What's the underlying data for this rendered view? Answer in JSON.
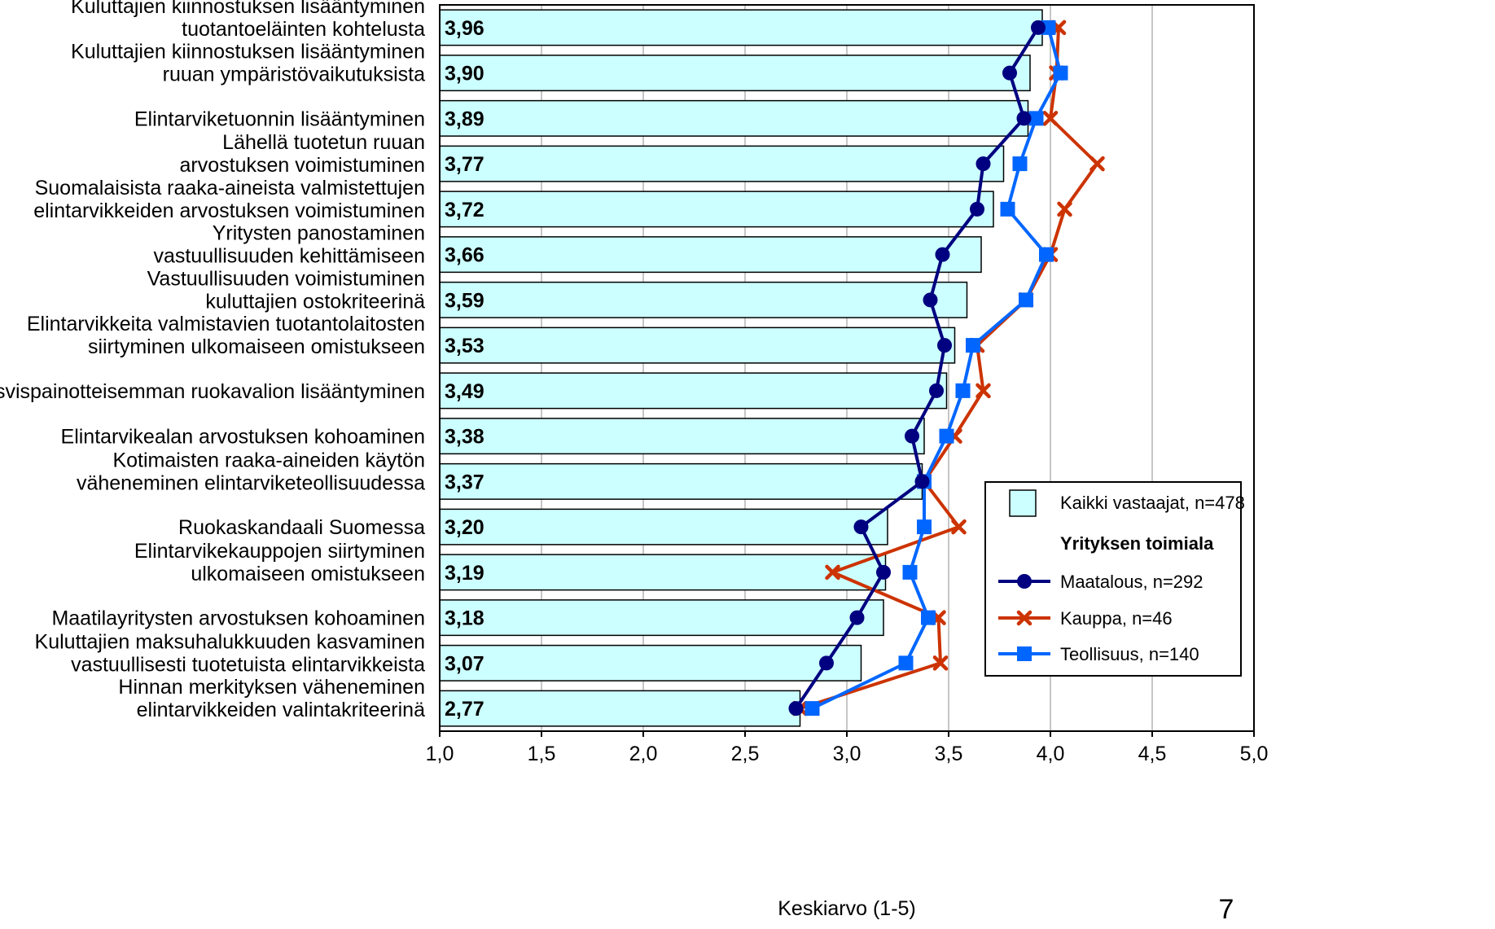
{
  "chart_data": {
    "type": "bar",
    "orientation": "horizontal",
    "xlabel": "Keskiarvo (1-5)",
    "xlim": [
      1.0,
      5.0
    ],
    "xticks": [
      "1,0",
      "1,5",
      "2,0",
      "2,5",
      "3,0",
      "3,5",
      "4,0",
      "4,5",
      "5,0"
    ],
    "grid": "vertical",
    "legend_position": "bottom-right",
    "categories": [
      [
        "Kuluttajien kiinnostuksen lisääntyminen",
        "tuotantoeläinten kohtelusta"
      ],
      [
        "Kuluttajien kiinnostuksen lisääntyminen",
        "ruuan ympäristövaikutuksista"
      ],
      [
        "Elintarviketuonnin lisääntyminen"
      ],
      [
        "Lähellä tuotetun ruuan",
        "arvostuksen voimistuminen"
      ],
      [
        "Suomalaisista raaka-aineista valmistettujen",
        "elintarvikkeiden arvostuksen voimistuminen"
      ],
      [
        "Yritysten panostaminen",
        "vastuullisuuden kehittämiseen"
      ],
      [
        "Vastuullisuuden voimistuminen",
        "kuluttajien ostokriteerinä"
      ],
      [
        "Elintarvikkeita valmistavien tuotantolaitosten",
        "siirtyminen ulkomaiseen omistukseen"
      ],
      [
        "Kasvispainotteisemman ruokavalion lisääntyminen"
      ],
      [
        "Elintarvikealan arvostuksen kohoaminen"
      ],
      [
        "Kotimaisten raaka-aineiden käytön",
        "väheneminen elintarviketeollisuudessa"
      ],
      [
        "Ruokaskandaali Suomessa"
      ],
      [
        "Elintarvikekauppojen siirtyminen",
        "ulkomaiseen omistukseen"
      ],
      [
        "Maatilayritysten arvostuksen kohoaminen"
      ],
      [
        "Kuluttajien maksuhalukkuuden kasvaminen",
        "vastuullisesti tuotetuista elintarvikkeista"
      ],
      [
        "Hinnan merkityksen väheneminen",
        "elintarvikkeiden valintakriteerinä"
      ]
    ],
    "bar_series": {
      "name": "Kaikki vastaajat, n=478",
      "color": "#ccffff",
      "values": [
        3.96,
        3.9,
        3.89,
        3.77,
        3.72,
        3.66,
        3.59,
        3.53,
        3.49,
        3.38,
        3.37,
        3.2,
        3.19,
        3.18,
        3.07,
        2.77
      ],
      "labels": [
        "3,96",
        "3,90",
        "3,89",
        "3,77",
        "3,72",
        "3,66",
        "3,59",
        "3,53",
        "3,49",
        "3,38",
        "3,37",
        "3,20",
        "3,19",
        "3,18",
        "3,07",
        "2,77"
      ]
    },
    "legend_group_title": "Yrityksen toimiala",
    "line_series": [
      {
        "name": "Maatalous, n=292",
        "color": "#000080",
        "marker": "circle",
        "values": [
          3.94,
          3.8,
          3.87,
          3.67,
          3.64,
          3.47,
          3.41,
          3.48,
          3.44,
          3.32,
          3.37,
          3.07,
          3.18,
          3.05,
          2.9,
          2.75
        ]
      },
      {
        "name": "Kauppa, n=46",
        "color": "#cc3300",
        "marker": "x",
        "values": [
          4.04,
          4.03,
          4.0,
          4.23,
          4.07,
          4.0,
          3.88,
          3.64,
          3.67,
          3.53,
          3.38,
          3.55,
          2.93,
          3.45,
          3.46,
          2.77
        ]
      },
      {
        "name": "Teollisuus, n=140",
        "color": "#0066ff",
        "marker": "square",
        "values": [
          3.99,
          4.05,
          3.93,
          3.85,
          3.79,
          3.98,
          3.88,
          3.62,
          3.57,
          3.49,
          3.38,
          3.38,
          3.31,
          3.4,
          3.29,
          2.83
        ]
      }
    ]
  },
  "page_number": "7"
}
